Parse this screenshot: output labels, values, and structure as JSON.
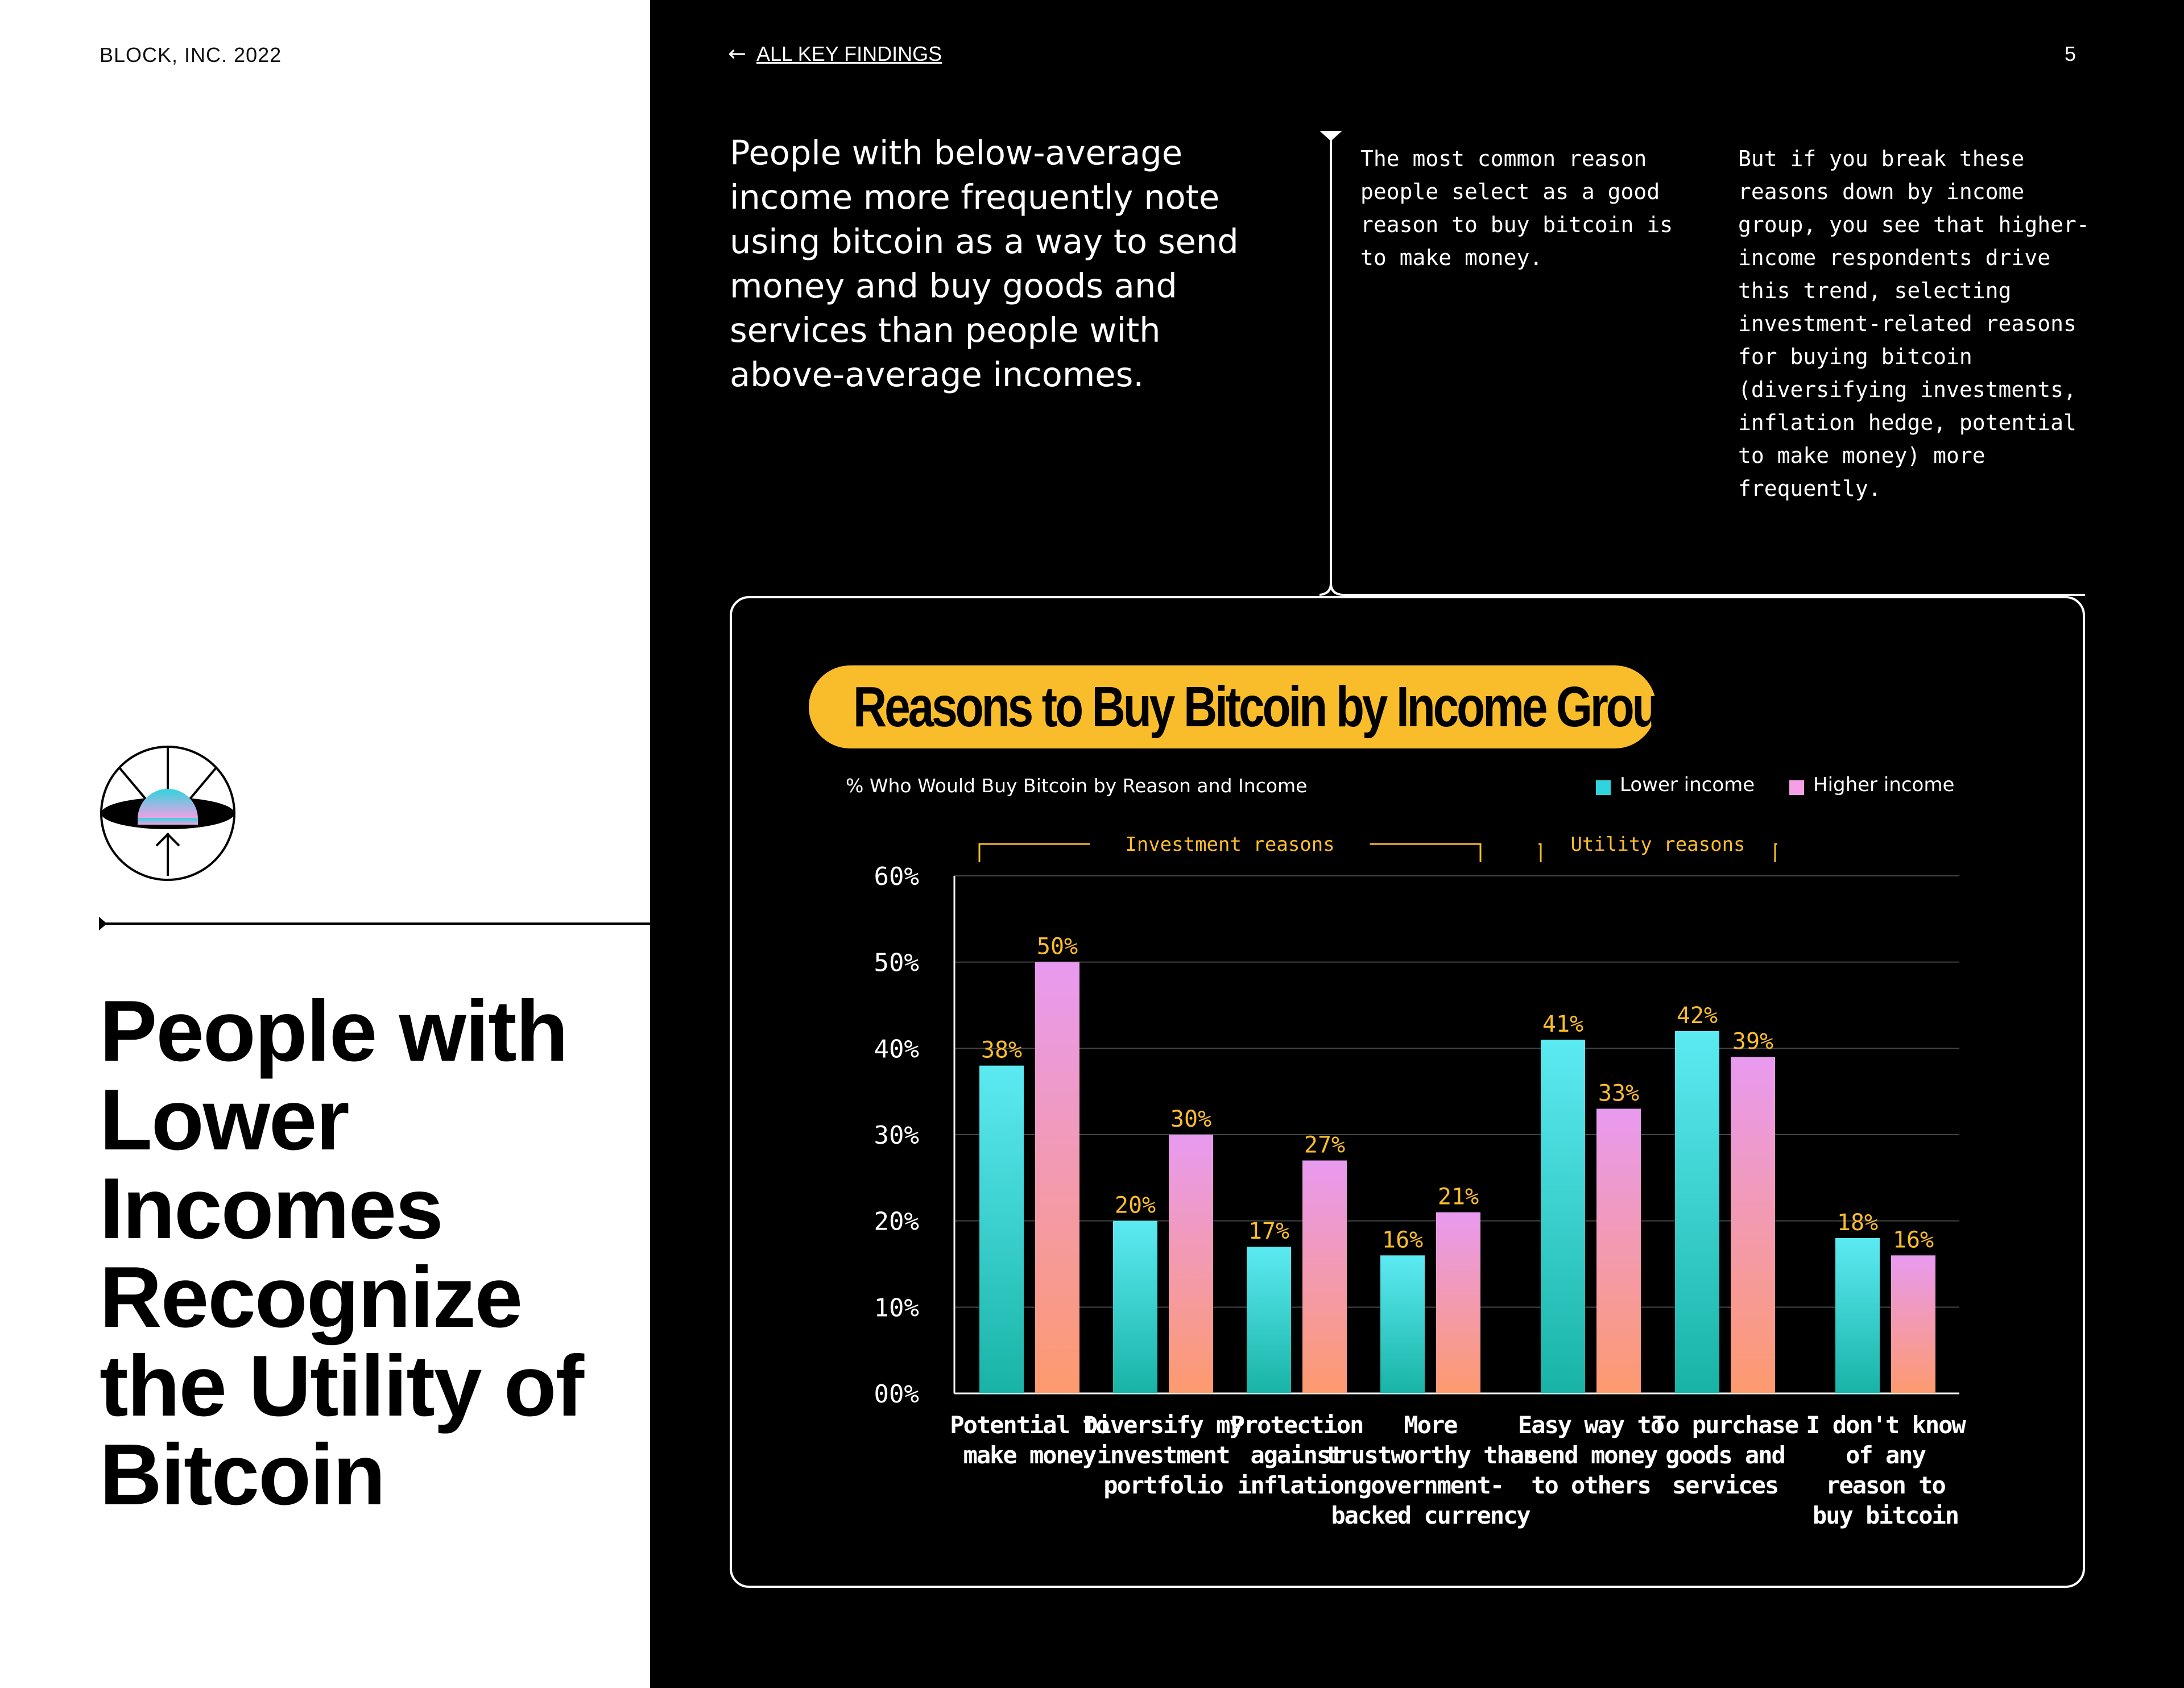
{
  "header": {
    "brand": "BLOCK, INC. 2022",
    "back_link": "ALL KEY FINDINGS",
    "page_number": "5"
  },
  "left": {
    "title": "People with Lower Incomes Recognize the Utility of Bitcoin"
  },
  "intro": {
    "lead": "People with below-average income more frequently note using bitcoin as a way to send money and buy goods and services than people with above-average incomes.",
    "column1": "The most common reason people select as a good reason to buy bitcoin is to make money.",
    "column2": "But if you break these reasons down by income group, you see that higher-income respondents drive this trend, selecting investment-related reasons for buying bitcoin (diversifying investments, inflation hedge, potential to make money) more frequently."
  },
  "colors": {
    "accent_yellow": "#f9bd2b",
    "lower_income": "#2fd4dc",
    "higher_income": "#f3a0e6",
    "annotation": "#f9bd2b"
  },
  "chart_data": {
    "type": "bar",
    "title": "Reasons to Buy Bitcoin by Income Group",
    "subtitle": "% Who Would Buy Bitcoin by Reason and Income",
    "ylim": [
      0,
      60
    ],
    "yticks": [
      "00%",
      "10%",
      "20%",
      "30%",
      "40%",
      "50%",
      "60%"
    ],
    "legend_position": "top-right",
    "groups": [
      {
        "label": "Investment reasons",
        "from": 0,
        "to": 3
      },
      {
        "label": "Utility reasons",
        "from": 4,
        "to": 5
      }
    ],
    "categories": [
      [
        "Potential to",
        "make money"
      ],
      [
        "Diversify my",
        "investment",
        "portfolio"
      ],
      [
        "Protection",
        "against",
        "inflation"
      ],
      [
        "More",
        "trustworthy than",
        "government-",
        "backed currency"
      ],
      [
        "Easy way to",
        "send money",
        "to others"
      ],
      [
        "To purchase",
        "goods and",
        "services"
      ],
      [
        "I don't know",
        "of any",
        "reason to",
        "buy bitcoin"
      ]
    ],
    "series": [
      {
        "name": "Lower income",
        "values": [
          38,
          20,
          17,
          16,
          41,
          42,
          18
        ],
        "labels": [
          "38%",
          "20%",
          "17%",
          "16%",
          "41%",
          "42%",
          "18%"
        ]
      },
      {
        "name": "Higher income",
        "values": [
          50,
          30,
          27,
          21,
          33,
          39,
          16
        ],
        "labels": [
          "50%",
          "30%",
          "27%",
          "21%",
          "33%",
          "39%",
          "16%"
        ]
      }
    ]
  }
}
